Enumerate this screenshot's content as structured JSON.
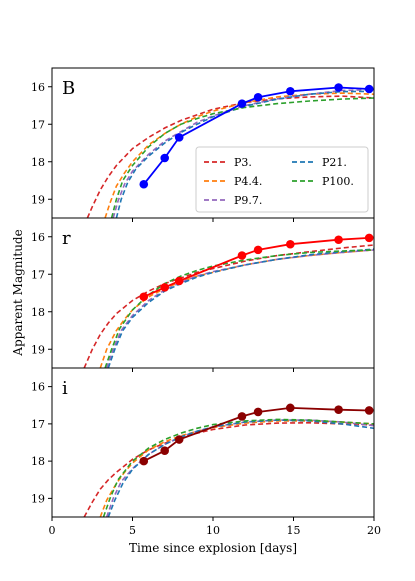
{
  "chart_data": {
    "type": "line",
    "xlabel": "Time since explosion [days]",
    "ylabel": "Apparent Magnitude",
    "xlim": [
      0,
      20
    ],
    "ylim": [
      19.5,
      15.5
    ],
    "inverted_y": true,
    "x_ticks": [
      0,
      5,
      10,
      15,
      20
    ],
    "y_ticks": [
      16,
      17,
      18,
      19
    ],
    "grid": false,
    "legend": {
      "panel": "B",
      "placement": "lower-right",
      "entries": [
        {
          "name": "P3.",
          "color": "#d62728"
        },
        {
          "name": "P21.",
          "color": "#1f77b4"
        },
        {
          "name": "P4.4.",
          "color": "#ff7f0e"
        },
        {
          "name": "P100.",
          "color": "#2ca02c"
        },
        {
          "name": "P9.7.",
          "color": "#9467bd"
        }
      ]
    },
    "panels": [
      {
        "band": "B",
        "observed": {
          "color": "#0000ff",
          "x": [
            5.7,
            7.0,
            7.9,
            11.8,
            12.8,
            14.8,
            17.8,
            19.7
          ],
          "y": [
            18.6,
            17.9,
            17.35,
            16.45,
            16.28,
            16.12,
            16.02,
            16.06
          ]
        },
        "models": [
          {
            "name": "P3.",
            "color": "#d62728",
            "x": [
              2.2,
              2.5,
              3,
              3.5,
              4,
              5,
              6,
              7,
              8,
              9,
              10,
              12,
              14,
              16,
              18,
              20
            ],
            "y": [
              19.5,
              19.2,
              18.75,
              18.4,
              18.1,
              17.65,
              17.35,
              17.1,
              16.9,
              16.75,
              16.6,
              16.42,
              16.32,
              16.27,
              16.25,
              16.3
            ]
          },
          {
            "name": "P4.4.",
            "color": "#ff7f0e",
            "x": [
              3.3,
              3.6,
              4,
              4.5,
              5,
              6,
              7,
              8,
              9,
              10,
              12,
              14,
              16,
              18,
              20
            ],
            "y": [
              19.5,
              19.1,
              18.65,
              18.3,
              18.0,
              17.55,
              17.25,
              17.0,
              16.8,
              16.65,
              16.42,
              16.27,
              16.2,
              16.17,
              16.2
            ]
          },
          {
            "name": "P9.7.",
            "color": "#9467bd",
            "x": [
              3.8,
              4.1,
              4.5,
              5,
              6,
              7,
              8,
              9,
              10,
              12,
              14,
              16,
              18,
              20
            ],
            "y": [
              19.5,
              19.05,
              18.6,
              18.25,
              17.8,
              17.45,
              17.2,
              16.95,
              16.78,
              16.5,
              16.32,
              16.2,
              16.1,
              16.08
            ]
          },
          {
            "name": "P21.",
            "color": "#1f77b4",
            "x": [
              4.0,
              4.3,
              4.7,
              5.2,
              6,
              7,
              8,
              9,
              10,
              12,
              14,
              16,
              18,
              20
            ],
            "y": [
              19.5,
              19.0,
              18.55,
              18.2,
              17.85,
              17.5,
              17.22,
              17.0,
              16.8,
              16.52,
              16.33,
              16.2,
              16.13,
              16.12
            ]
          },
          {
            "name": "P100.",
            "color": "#2ca02c",
            "x": [
              3.7,
              4.0,
              4.4,
              5,
              6,
              7,
              8,
              9,
              10,
              12,
              14,
              16,
              18,
              20
            ],
            "y": [
              19.5,
              19.0,
              18.5,
              18.1,
              17.6,
              17.25,
              17.0,
              16.85,
              16.72,
              16.55,
              16.45,
              16.38,
              16.33,
              16.3
            ]
          }
        ]
      },
      {
        "band": "r",
        "observed": {
          "color": "#ff0000",
          "x": [
            5.7,
            7.0,
            7.9,
            11.8,
            12.8,
            14.8,
            17.8,
            19.7
          ],
          "y": [
            17.6,
            17.35,
            17.18,
            16.5,
            16.35,
            16.2,
            16.08,
            16.03
          ]
        },
        "models": [
          {
            "name": "P3.",
            "color": "#d62728",
            "x": [
              2.0,
              2.5,
              3,
              3.5,
              4,
              5,
              6,
              7,
              8,
              9,
              10,
              12,
              14,
              16,
              18,
              20
            ],
            "y": [
              19.5,
              19.0,
              18.6,
              18.3,
              18.05,
              17.7,
              17.45,
              17.25,
              17.1,
              16.95,
              16.85,
              16.65,
              16.5,
              16.4,
              16.3,
              16.22
            ]
          },
          {
            "name": "P4.4.",
            "color": "#ff7f0e",
            "x": [
              3.0,
              3.4,
              4,
              4.5,
              5,
              6,
              7,
              8,
              9,
              10,
              12,
              14,
              16,
              18,
              20
            ],
            "y": [
              19.5,
              19.0,
              18.5,
              18.2,
              17.95,
              17.6,
              17.38,
              17.2,
              17.05,
              16.95,
              16.75,
              16.6,
              16.5,
              16.42,
              16.35
            ]
          },
          {
            "name": "P9.7.",
            "color": "#9467bd",
            "x": [
              3.4,
              3.8,
              4.3,
              5,
              6,
              7,
              8,
              9,
              10,
              12,
              14,
              16,
              18,
              20
            ],
            "y": [
              19.5,
              19.0,
              18.5,
              18.1,
              17.7,
              17.42,
              17.22,
              17.05,
              16.93,
              16.75,
              16.6,
              16.5,
              16.42,
              16.35
            ]
          },
          {
            "name": "P21.",
            "color": "#1f77b4",
            "x": [
              3.5,
              3.9,
              4.4,
              5,
              6,
              7,
              8,
              9,
              10,
              12,
              14,
              16,
              18,
              20
            ],
            "y": [
              19.5,
              19.0,
              18.5,
              18.15,
              17.75,
              17.45,
              17.25,
              17.08,
              16.95,
              16.75,
              16.6,
              16.48,
              16.4,
              16.33
            ]
          },
          {
            "name": "P100.",
            "color": "#2ca02c",
            "x": [
              3.3,
              3.7,
              4.2,
              5,
              6,
              7,
              8,
              9,
              10,
              12,
              14,
              16,
              18,
              20
            ],
            "y": [
              19.5,
              19.0,
              18.45,
              17.95,
              17.55,
              17.25,
              17.05,
              16.9,
              16.78,
              16.62,
              16.5,
              16.42,
              16.38,
              16.35
            ]
          }
        ]
      },
      {
        "band": "i",
        "observed": {
          "color": "#8b0000",
          "x": [
            5.7,
            7.0,
            7.9,
            11.8,
            12.8,
            14.8,
            17.8,
            19.7
          ],
          "y": [
            18.0,
            17.72,
            17.42,
            16.8,
            16.68,
            16.57,
            16.62,
            16.64
          ]
        },
        "models": [
          {
            "name": "P3.",
            "color": "#d62728",
            "x": [
              2.0,
              2.5,
              3,
              3.5,
              4,
              5,
              6,
              7,
              8,
              9,
              10,
              12,
              14,
              16,
              18,
              20
            ],
            "y": [
              19.5,
              19.1,
              18.75,
              18.5,
              18.3,
              17.95,
              17.7,
              17.52,
              17.38,
              17.25,
              17.15,
              17.03,
              16.98,
              16.97,
              17.0,
              17.03
            ]
          },
          {
            "name": "P4.4.",
            "color": "#ff7f0e",
            "x": [
              3.0,
              3.4,
              4,
              4.5,
              5,
              6,
              7,
              8,
              9,
              10,
              12,
              14,
              16,
              18,
              20
            ],
            "y": [
              19.5,
              19.05,
              18.6,
              18.3,
              18.05,
              17.7,
              17.48,
              17.32,
              17.2,
              17.1,
              16.98,
              16.92,
              16.92,
              16.95,
              17.0
            ]
          },
          {
            "name": "P9.7.",
            "color": "#9467bd",
            "x": [
              3.4,
              3.8,
              4.3,
              5,
              6,
              7,
              8,
              9,
              10,
              12,
              14,
              16,
              18,
              20
            ],
            "y": [
              19.5,
              19.0,
              18.55,
              18.2,
              17.82,
              17.55,
              17.35,
              17.2,
              17.08,
              16.95,
              16.9,
              16.9,
              16.95,
              17.05
            ]
          },
          {
            "name": "P21.",
            "color": "#1f77b4",
            "x": [
              3.5,
              3.9,
              4.4,
              5,
              6,
              7,
              8,
              9,
              10,
              12,
              14,
              16,
              18,
              20
            ],
            "y": [
              19.5,
              19.05,
              18.6,
              18.22,
              17.82,
              17.55,
              17.35,
              17.2,
              17.08,
              16.95,
              16.9,
              16.92,
              17.0,
              17.12
            ]
          },
          {
            "name": "P100.",
            "color": "#2ca02c",
            "x": [
              3.2,
              3.6,
              4.1,
              5,
              6,
              7,
              8,
              9,
              10,
              12,
              14,
              16,
              18,
              20
            ],
            "y": [
              19.5,
              19.0,
              18.5,
              18.0,
              17.65,
              17.42,
              17.25,
              17.12,
              17.02,
              16.92,
              16.88,
              16.9,
              16.95,
              17.0
            ]
          }
        ]
      }
    ]
  }
}
